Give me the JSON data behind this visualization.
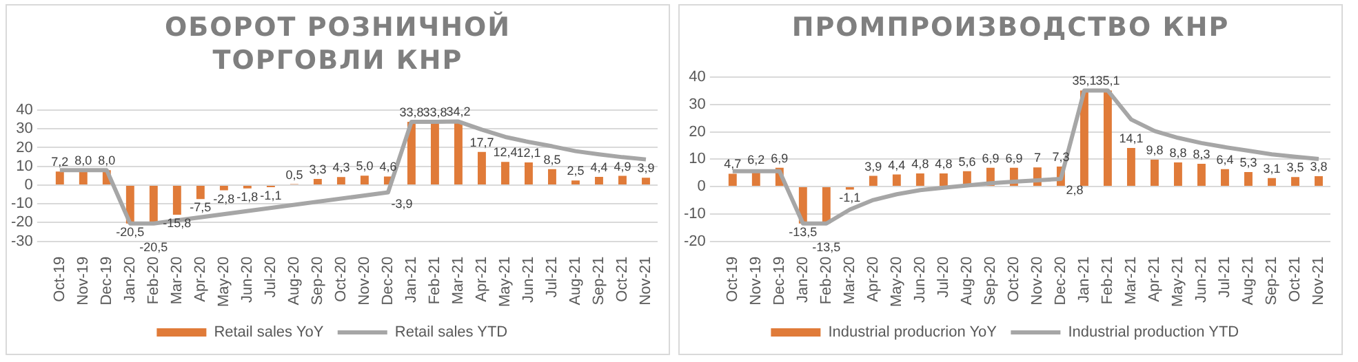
{
  "chart_data": [
    {
      "type": "bar",
      "title": "ОБОРОТ РОЗНИЧНОЙ ТОРГОВЛИ КНР",
      "categories": [
        "Oct-19",
        "Nov-19",
        "Dec-19",
        "Jan-20",
        "Feb-20",
        "Mar-20",
        "Apr-20",
        "May-20",
        "Jun-20",
        "Jul-20",
        "Aug-20",
        "Sep-20",
        "Oct-20",
        "Nov-20",
        "Dec-20",
        "Jan-21",
        "Feb-21",
        "Mar-21",
        "Apr-21",
        "May-21",
        "Jun-21",
        "Jul-21",
        "Aug-21",
        "Sep-21",
        "Oct-21",
        "Nov-21"
      ],
      "series": [
        {
          "name": "Retail sales YoY",
          "color": "#e07b39",
          "values": [
            7.2,
            8.0,
            8.0,
            -20.5,
            -20.5,
            -15.8,
            -7.5,
            -2.8,
            -1.8,
            -1.1,
            0.5,
            3.3,
            4.3,
            5.0,
            4.6,
            33.8,
            33.8,
            34.2,
            17.7,
            12.4,
            12.1,
            8.5,
            2.5,
            4.4,
            4.9,
            3.9
          ],
          "value_labels": [
            "7,2",
            "8,0",
            "8,0",
            "-20,5",
            "-20,5",
            "-15,8",
            "-7,5",
            "-2,8",
            "-1,8",
            "-1,1",
            "0,5",
            "3,3",
            "4,3",
            "5,0",
            "4,6",
            "33,8",
            "33,8",
            "34,2",
            "17,7",
            "12,4",
            "12,1",
            "8,5",
            "2,5",
            "4,4",
            "4,9",
            "3,9"
          ]
        },
        {
          "name": "Retail sales YTD",
          "type": "line",
          "color": "#a6a6a6",
          "values": [
            8.0,
            8.0,
            8.0,
            -20.5,
            -20.5,
            null,
            null,
            null,
            null,
            null,
            null,
            null,
            null,
            null,
            -3.9,
            33.8,
            33.8,
            33.9,
            29.6,
            25.7,
            23.0,
            20.7,
            18.1,
            16.4,
            14.9,
            13.7
          ],
          "value_labels": [
            null,
            null,
            null,
            null,
            null,
            null,
            null,
            null,
            null,
            null,
            null,
            null,
            null,
            null,
            "-3,9",
            null,
            null,
            null,
            null,
            null,
            null,
            null,
            null,
            null,
            null,
            null
          ]
        }
      ],
      "ylim": [
        -30,
        40
      ],
      "yticks": [
        -30,
        -20,
        -10,
        0,
        10,
        20,
        30,
        40
      ],
      "grid": "y",
      "legend": "bottom"
    },
    {
      "type": "bar",
      "title": "ПРОМПРОИЗВОДСТВО КНР",
      "categories": [
        "Oct-19",
        "Nov-19",
        "Dec-19",
        "Jan-20",
        "Feb-20",
        "Mar-20",
        "Apr-20",
        "May-20",
        "Jun-20",
        "Jul-20",
        "Aug-20",
        "Sep-20",
        "Oct-20",
        "Nov-20",
        "Dec-20",
        "Jan-21",
        "Feb-21",
        "Mar-21",
        "Apr-21",
        "May-21",
        "Jun-21",
        "Jul-21",
        "Aug-21",
        "Sep-21",
        "Oct-21",
        "Nov-21"
      ],
      "series": [
        {
          "name": "Industrial producrion YoY",
          "color": "#e07b39",
          "values": [
            4.7,
            6.2,
            6.9,
            -13.5,
            -13.5,
            -1.1,
            3.9,
            4.4,
            4.8,
            4.8,
            5.6,
            6.9,
            6.9,
            7,
            7.3,
            35.1,
            35.1,
            14.1,
            9.8,
            8.8,
            8.3,
            6.4,
            5.3,
            3.1,
            3.5,
            3.8
          ],
          "value_labels": [
            "4,7",
            "6,2",
            "6,9",
            "-13,5",
            "-13,5",
            "-1,1",
            "3,9",
            "4,4",
            "4,8",
            "4,8",
            "5,6",
            "6,9",
            "6,9",
            "7",
            "7,3",
            "35,1",
            "35,1",
            "14,1",
            "9,8",
            "8,8",
            "8,3",
            "6,4",
            "5,3",
            "3,1",
            "3,5",
            "3,8"
          ]
        },
        {
          "name": "Industrial production YTD",
          "type": "line",
          "color": "#a6a6a6",
          "values": [
            5.6,
            5.6,
            5.6,
            -13.5,
            -13.5,
            -8.4,
            -4.9,
            -2.8,
            -1.3,
            -0.4,
            0.4,
            1.2,
            1.8,
            2.3,
            2.8,
            35.1,
            35.1,
            24.5,
            20.3,
            17.8,
            15.9,
            14.4,
            13.1,
            11.8,
            10.9,
            10.1
          ],
          "value_labels": [
            null,
            null,
            null,
            null,
            null,
            null,
            null,
            null,
            null,
            null,
            null,
            null,
            null,
            null,
            "2,8",
            null,
            null,
            null,
            null,
            null,
            null,
            null,
            null,
            null,
            null,
            null
          ]
        }
      ],
      "ylim": [
        -20,
        40
      ],
      "yticks": [
        -20,
        -10,
        0,
        10,
        20,
        30,
        40
      ],
      "grid": "y",
      "legend": "bottom"
    }
  ]
}
